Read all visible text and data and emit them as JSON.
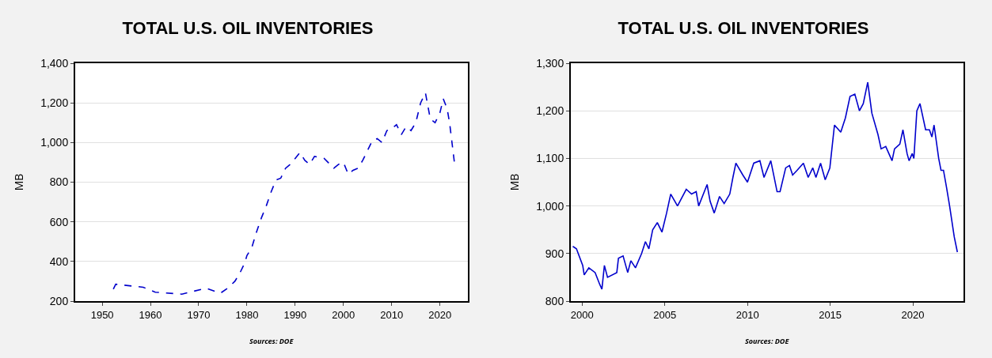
{
  "chart_data": [
    {
      "type": "line",
      "title": "TOTAL U.S. OIL INVENTORIES",
      "ylabel": "MB",
      "annotations": [
        "Sources: DOE"
      ],
      "line_style": "dashed",
      "grid": "y",
      "marker": "none",
      "xlim": [
        1944.4,
        2025.8
      ],
      "xticks": [
        1950,
        1960,
        1970,
        1980,
        1990,
        2000,
        2010,
        2020
      ],
      "ylim": [
        200,
        1400
      ],
      "yticks": [
        200,
        400,
        600,
        800,
        {
          "value": 1000,
          "label": "1,000"
        },
        {
          "value": 1200,
          "label": "1,200"
        },
        {
          "value": 1400,
          "label": "1,400"
        }
      ],
      "series": [
        {
          "color": "#0000cc",
          "x": [
            1952.3,
            1952.8,
            1958.5,
            1960,
            1961,
            1966.5,
            1971.5,
            1974.5,
            1976,
            1977.5,
            1978.5,
            1979.5,
            1980,
            1981,
            1982,
            1983,
            1984,
            1985,
            1986,
            1987,
            1988,
            1989,
            1990,
            1991,
            1992,
            1993,
            1994,
            1996,
            1998,
            1999,
            2000,
            2001,
            2002,
            2003,
            2004,
            2005,
            2006,
            2007,
            2008,
            2009,
            2010,
            2011,
            2012,
            2013,
            2014,
            2015,
            2016,
            2017,
            2018,
            2019,
            2020,
            2020.7,
            2021.5,
            2022,
            2022.5,
            2023
          ],
          "values": [
            260,
            285,
            270,
            255,
            245,
            235,
            265,
            240,
            265,
            300,
            340,
            390,
            430,
            470,
            550,
            620,
            680,
            750,
            810,
            820,
            870,
            890,
            920,
            950,
            910,
            890,
            930,
            920,
            870,
            890,
            900,
            840,
            860,
            870,
            910,
            960,
            1010,
            1020,
            1000,
            1060,
            1070,
            1090,
            1040,
            1080,
            1060,
            1100,
            1200,
            1250,
            1120,
            1100,
            1150,
            1220,
            1170,
            1100,
            1000,
            900
          ]
        }
      ]
    },
    {
      "type": "line",
      "title": "TOTAL U.S. OIL INVENTORIES",
      "ylabel": "MB",
      "annotations": [
        "Sources: DOE"
      ],
      "line_style": "solid",
      "grid": "y",
      "marker": "none",
      "xlim": [
        1999.32,
        2023.06
      ],
      "xticks": [
        2000,
        2005,
        2010,
        2015,
        2020
      ],
      "ylim": [
        800,
        1300
      ],
      "yticks": [
        800,
        900,
        {
          "value": 1000,
          "label": "1,000"
        },
        {
          "value": 1100,
          "label": "1,100"
        },
        {
          "value": 1200,
          "label": "1,200"
        },
        {
          "value": 1300,
          "label": "1,300"
        }
      ],
      "series": [
        {
          "color": "#0000cc",
          "x": [
            1999.44,
            1999.66,
            2000.04,
            2000.13,
            2000.41,
            2000.79,
            2001.07,
            2001.2,
            2001.35,
            2001.54,
            2002.1,
            2002.2,
            2002.48,
            2002.76,
            2002.95,
            2003.23,
            2003.6,
            2003.83,
            2004.04,
            2004.27,
            2004.55,
            2004.83,
            2005.11,
            2005.36,
            2005.77,
            2006.3,
            2006.62,
            2006.9,
            2007.05,
            2007.56,
            2007.74,
            2007.99,
            2008.31,
            2008.59,
            2008.93,
            2009.12,
            2009.3,
            2009.72,
            2010.0,
            2010.38,
            2010.75,
            2011.0,
            2011.41,
            2011.79,
            2011.97,
            2012.31,
            2012.54,
            2012.73,
            2013.0,
            2013.38,
            2013.67,
            2013.95,
            2014.14,
            2014.42,
            2014.7,
            2014.98,
            2015.26,
            2015.64,
            2015.92,
            2016.2,
            2016.49,
            2016.77,
            2017.0,
            2017.27,
            2017.52,
            2017.89,
            2018.08,
            2018.36,
            2018.74,
            2018.89,
            2019.21,
            2019.4,
            2019.65,
            2019.77,
            2019.96,
            2020.06,
            2020.24,
            2020.43,
            2020.77,
            2021.0,
            2021.15,
            2021.28,
            2021.56,
            2021.7,
            2021.85,
            2022.03,
            2022.22,
            2022.5,
            2022.69
          ],
          "values": [
            915,
            910,
            875,
            855,
            870,
            860,
            835,
            825,
            875,
            850,
            860,
            890,
            895,
            860,
            885,
            870,
            900,
            925,
            910,
            950,
            965,
            945,
            985,
            1025,
            1000,
            1035,
            1025,
            1030,
            1000,
            1045,
            1010,
            985,
            1020,
            1005,
            1025,
            1060,
            1090,
            1065,
            1050,
            1090,
            1095,
            1060,
            1095,
            1030,
            1030,
            1080,
            1085,
            1065,
            1075,
            1090,
            1060,
            1080,
            1060,
            1090,
            1055,
            1080,
            1170,
            1155,
            1185,
            1230,
            1235,
            1200,
            1215,
            1260,
            1195,
            1150,
            1120,
            1125,
            1095,
            1120,
            1130,
            1160,
            1110,
            1095,
            1110,
            1100,
            1200,
            1215,
            1160,
            1160,
            1145,
            1170,
            1100,
            1075,
            1075,
            1040,
            1000,
            935,
            903
          ]
        }
      ]
    }
  ]
}
